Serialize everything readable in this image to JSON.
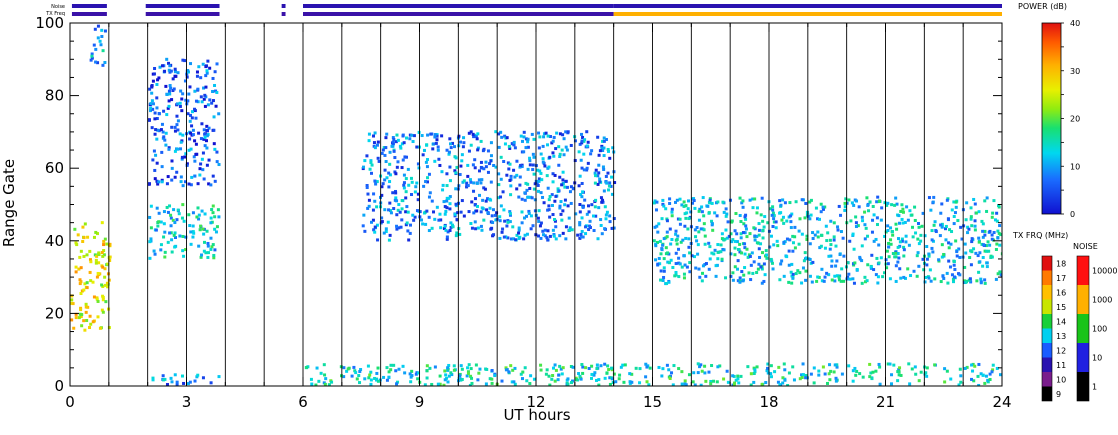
{
  "chart_data": {
    "type": "heatmap",
    "xlabel": "UT hours",
    "ylabel": "Range Gate",
    "xlim": [
      0,
      24
    ],
    "ylim": [
      0,
      100
    ],
    "x_ticks": [
      0,
      3,
      6,
      9,
      12,
      15,
      18,
      21,
      24
    ],
    "y_ticks": [
      0,
      20,
      40,
      60,
      80,
      100
    ],
    "hour_lines": [
      1,
      2,
      3,
      4,
      5,
      6,
      7,
      8,
      9,
      10,
      11,
      12,
      13,
      14,
      15,
      16,
      17,
      18,
      19,
      20,
      21,
      22,
      23
    ],
    "status_bars": {
      "noise_label": "Noise",
      "txfreq_label": "TX Freq",
      "coverage": [
        {
          "start": 0.05,
          "end": 0.95,
          "noise": "blue",
          "txfreq": "purple"
        },
        {
          "start": 1.95,
          "end": 3.85,
          "noise": "blue",
          "txfreq": "purple"
        },
        {
          "start": 5.45,
          "end": 5.55,
          "noise": "blue",
          "txfreq": "purple"
        },
        {
          "start": 6.0,
          "end": 14.0,
          "noise": "blue",
          "txfreq": "purple"
        },
        {
          "start": 14.0,
          "end": 24.0,
          "noise": "blue",
          "txfreq": "orange-yellow"
        }
      ]
    },
    "power_scale": {
      "label": "POWER (dB)",
      "range": [
        0,
        40
      ],
      "ticks": [
        0,
        10,
        20,
        30,
        40
      ]
    },
    "txfreq_scale": {
      "label": "TX FRQ (MHz)",
      "ticks": [
        9,
        10,
        11,
        12,
        13,
        14,
        15,
        16,
        17,
        18
      ],
      "colors": [
        "#000000",
        "#7a1d8c",
        "#2a12b0",
        "#1a5cff",
        "#00d0f0",
        "#19d03a",
        "#c8e600",
        "#ffc000",
        "#ff7a00",
        "#e01010"
      ]
    },
    "noise_scale": {
      "label": "NOISE",
      "ticks": [
        "1",
        "10",
        "100",
        "1000",
        "10000"
      ],
      "colors": [
        "#000000",
        "#2020e0",
        "#19c419",
        "#ffb000",
        "#ff1010"
      ]
    },
    "echo_regions": [
      {
        "name": "early low gate echoes",
        "t": [
          0.0,
          1.0
        ],
        "gates": [
          15,
          45
        ],
        "power": 26
      },
      {
        "name": "early high gate scatter",
        "t": [
          0.5,
          0.9
        ],
        "gates": [
          88,
          100
        ],
        "power": 10
      },
      {
        "name": "band 2-4 UT",
        "t": [
          2.0,
          3.8
        ],
        "gates": [
          35,
          50
        ],
        "power": 13
      },
      {
        "name": "rising track 2-4 UT",
        "t": [
          2.0,
          3.8
        ],
        "gates": [
          55,
          90
        ],
        "power": 6
      },
      {
        "name": "band 8-14 UT",
        "t": [
          7.5,
          14.0
        ],
        "gates": [
          40,
          70
        ],
        "power": 8
      },
      {
        "name": "band 16-24 UT",
        "t": [
          15.0,
          24.0
        ],
        "gates": [
          28,
          52
        ],
        "power": 12
      },
      {
        "name": "near range ground scatter",
        "t": [
          6.0,
          24.0
        ],
        "gates": [
          0,
          6
        ],
        "power": 14
      },
      {
        "name": "gate 2 ground scatter 2-4 UT",
        "t": [
          2.0,
          3.8
        ],
        "gates": [
          0,
          3
        ],
        "power": 8
      }
    ]
  }
}
